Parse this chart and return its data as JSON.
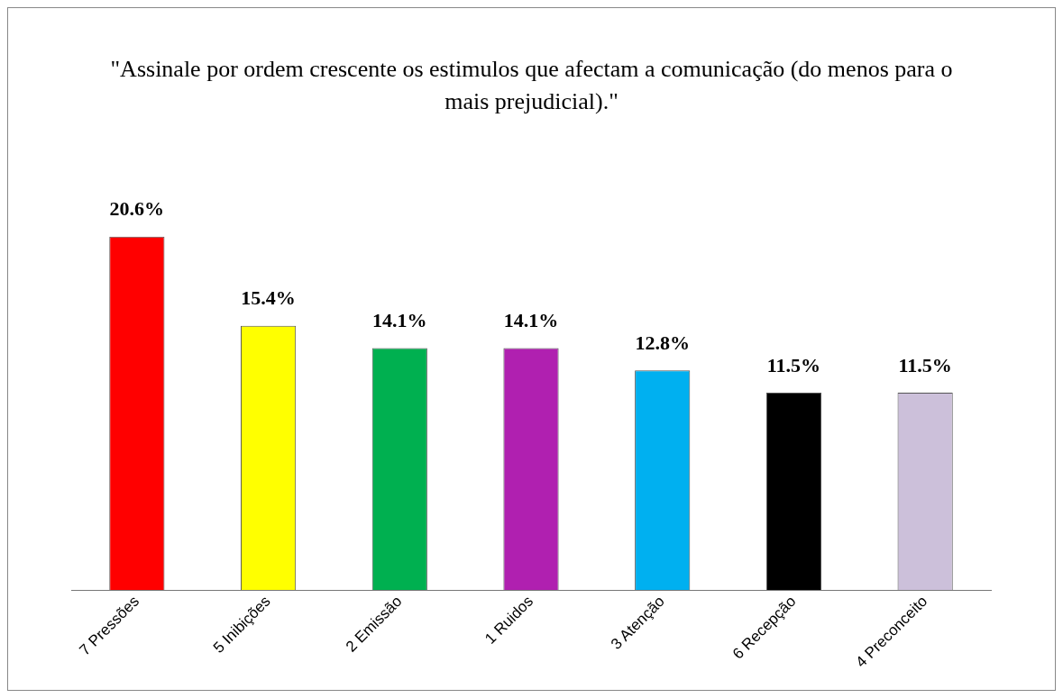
{
  "chart_data": {
    "type": "bar",
    "title": "\"Assinale por ordem crescente os estimulos que afectam a comunicação (do menos para o mais prejudicial).\"",
    "categories": [
      "7 Pressões",
      "5 Inibições",
      "2 Emissão",
      "1 Ruidos",
      "3 Atenção",
      "6 Recepção",
      "4 Preconceito"
    ],
    "values": [
      20.6,
      15.4,
      14.1,
      14.1,
      12.8,
      11.5,
      11.5
    ],
    "value_labels": [
      "20.6%",
      "15.4%",
      "14.1%",
      "14.1%",
      "12.8%",
      "11.5%",
      "11.5%"
    ],
    "colors": [
      "#ff0000",
      "#ffff00",
      "#00b050",
      "#b020b0",
      "#00b0f0",
      "#000000",
      "#ccc0da"
    ],
    "grid": false,
    "legend": false
  }
}
